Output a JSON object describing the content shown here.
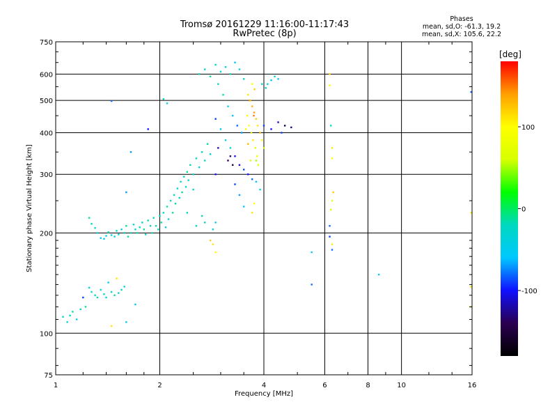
{
  "title": "Tromsø 20161229 11:16:00-11:17:43",
  "subtitle": "RwPretec (8p)",
  "info": {
    "heading": "Phases",
    "line1": "mean, sd,O: -61.3, 19.2",
    "line2": "mean, sd,X: 105.6, 22.2"
  },
  "colorbar": {
    "label": "[deg]",
    "range": [
      -180,
      180
    ],
    "ticks": [
      100,
      0,
      -100
    ],
    "colormap": [
      "#000000",
      "#2a0050",
      "#1010ff",
      "#00c8ff",
      "#00d8c0",
      "#00ff00",
      "#d8ff00",
      "#ffff00",
      "#ffa000",
      "#ff0000"
    ]
  },
  "chart_data": {
    "type": "scatter",
    "title": "Tromsø 20161229 11:16:00-11:17:43",
    "subtitle": "RwPretec (8p)",
    "xlabel": "Frequency [MHz]",
    "ylabel": "Stationary phase Virtual Height [km]",
    "xscale": "log",
    "yscale": "log",
    "xlim": [
      1,
      16
    ],
    "ylim": [
      75,
      750
    ],
    "xticks": [
      1,
      2,
      4,
      6,
      8,
      10,
      16
    ],
    "yticks": [
      75,
      100,
      200,
      300,
      400,
      500,
      600,
      750
    ],
    "grid": true,
    "color_variable": "phase [deg]",
    "series": [
      {
        "points": [
          [
            1.05,
            112,
            -20
          ],
          [
            1.08,
            108,
            -30
          ],
          [
            1.1,
            113,
            -25
          ],
          [
            1.12,
            116,
            -15
          ],
          [
            1.15,
            110,
            -35
          ],
          [
            1.18,
            118,
            -20
          ],
          [
            1.22,
            120,
            -10
          ],
          [
            1.25,
            137,
            -40
          ],
          [
            1.27,
            133,
            -30
          ],
          [
            1.3,
            130,
            -20
          ],
          [
            1.32,
            128,
            -15
          ],
          [
            1.35,
            135,
            -25
          ],
          [
            1.38,
            131,
            -20
          ],
          [
            1.4,
            128,
            -35
          ],
          [
            1.42,
            142,
            -60
          ],
          [
            1.45,
            133,
            -20
          ],
          [
            1.48,
            130,
            -15
          ],
          [
            1.5,
            146,
            110
          ],
          [
            1.52,
            132,
            -25
          ],
          [
            1.55,
            135,
            -20
          ],
          [
            1.58,
            138,
            -30
          ],
          [
            1.2,
            128,
            -90
          ],
          [
            1.45,
            105,
            110
          ],
          [
            1.6,
            108,
            -60
          ],
          [
            1.7,
            122,
            -50
          ],
          [
            1.25,
            222,
            -10
          ],
          [
            1.27,
            213,
            -20
          ],
          [
            1.3,
            207,
            -30
          ],
          [
            1.32,
            200,
            -40
          ],
          [
            1.35,
            193,
            -60
          ],
          [
            1.38,
            192,
            -50
          ],
          [
            1.4,
            196,
            -30
          ],
          [
            1.42,
            201,
            -20
          ],
          [
            1.45,
            197,
            -40
          ],
          [
            1.48,
            195,
            -30
          ],
          [
            1.5,
            203,
            -20
          ],
          [
            1.52,
            198,
            -25
          ],
          [
            1.55,
            205,
            -30
          ],
          [
            1.58,
            200,
            -20
          ],
          [
            1.6,
            210,
            -10
          ],
          [
            1.62,
            195,
            -15
          ],
          [
            1.65,
            200,
            -20
          ],
          [
            1.68,
            212,
            -30
          ],
          [
            1.7,
            205,
            -25
          ],
          [
            1.72,
            200,
            -15
          ],
          [
            1.75,
            208,
            -20
          ],
          [
            1.78,
            215,
            -30
          ],
          [
            1.8,
            205,
            -10
          ],
          [
            1.82,
            198,
            -20
          ],
          [
            1.85,
            218,
            -15
          ],
          [
            1.88,
            210,
            -25
          ],
          [
            1.9,
            200,
            -20
          ],
          [
            1.92,
            222,
            -30
          ],
          [
            1.95,
            210,
            -15
          ],
          [
            1.98,
            205,
            -20
          ],
          [
            2.0,
            225,
            -25
          ],
          [
            2.02,
            215,
            -10
          ],
          [
            2.05,
            230,
            -20
          ],
          [
            2.08,
            208,
            -30
          ],
          [
            2.1,
            240,
            -15
          ],
          [
            2.12,
            220,
            -25
          ],
          [
            2.15,
            250,
            -20
          ],
          [
            2.18,
            230,
            -10
          ],
          [
            2.2,
            260,
            -20
          ],
          [
            2.22,
            245,
            -15
          ],
          [
            2.25,
            272,
            -25
          ],
          [
            2.28,
            255,
            -20
          ],
          [
            2.3,
            285,
            -30
          ],
          [
            2.32,
            265,
            -15
          ],
          [
            2.35,
            295,
            -20
          ],
          [
            2.38,
            275,
            -25
          ],
          [
            2.4,
            305,
            -10
          ],
          [
            2.42,
            288,
            -20
          ],
          [
            2.45,
            320,
            -15
          ],
          [
            2.5,
            300,
            -25
          ],
          [
            2.55,
            335,
            -20
          ],
          [
            2.6,
            315,
            -30
          ],
          [
            2.65,
            350,
            -15
          ],
          [
            2.7,
            330,
            -20
          ],
          [
            2.75,
            370,
            -10
          ],
          [
            2.8,
            345,
            -25
          ],
          [
            1.6,
            265,
            -70
          ],
          [
            1.45,
            498,
            -80
          ],
          [
            1.65,
            350,
            -70
          ],
          [
            1.85,
            410,
            -100
          ],
          [
            2.05,
            505,
            -20
          ],
          [
            2.1,
            490,
            -30
          ],
          [
            2.5,
            270,
            -30
          ],
          [
            2.4,
            230,
            -20
          ],
          [
            2.7,
            215,
            -25
          ],
          [
            2.55,
            210,
            -20
          ],
          [
            2.65,
            225,
            -15
          ],
          [
            2.6,
            600,
            -20
          ],
          [
            2.7,
            620,
            -30
          ],
          [
            2.8,
            590,
            -10
          ],
          [
            2.9,
            640,
            -20
          ],
          [
            3.0,
            610,
            -40
          ],
          [
            3.1,
            630,
            -30
          ],
          [
            3.2,
            600,
            -20
          ],
          [
            3.3,
            650,
            -60
          ],
          [
            3.4,
            620,
            -40
          ],
          [
            3.5,
            580,
            -20
          ],
          [
            2.95,
            560,
            -30
          ],
          [
            3.05,
            520,
            -20
          ],
          [
            3.15,
            480,
            -40
          ],
          [
            3.25,
            450,
            -60
          ],
          [
            3.35,
            420,
            -80
          ],
          [
            3.45,
            400,
            -70
          ],
          [
            2.9,
            440,
            -90
          ],
          [
            3.0,
            410,
            -60
          ],
          [
            3.1,
            380,
            -40
          ],
          [
            3.2,
            360,
            -30
          ],
          [
            3.3,
            340,
            -100
          ],
          [
            3.4,
            320,
            -110
          ],
          [
            3.5,
            310,
            -90
          ],
          [
            3.6,
            300,
            -100
          ],
          [
            3.7,
            290,
            -80
          ],
          [
            3.8,
            285,
            -60
          ],
          [
            3.9,
            270,
            -40
          ],
          [
            3.15,
            330,
            -140
          ],
          [
            3.2,
            340,
            -130
          ],
          [
            3.25,
            320,
            -150
          ],
          [
            2.95,
            360,
            -120
          ],
          [
            2.9,
            300,
            -100
          ],
          [
            3.3,
            280,
            -90
          ],
          [
            3.4,
            260,
            -70
          ],
          [
            3.5,
            240,
            -60
          ],
          [
            2.85,
            205,
            -30
          ],
          [
            2.9,
            215,
            -40
          ],
          [
            3.6,
            520,
            110
          ],
          [
            3.65,
            500,
            90
          ],
          [
            3.7,
            480,
            130
          ],
          [
            3.75,
            460,
            140
          ],
          [
            3.8,
            440,
            120
          ],
          [
            3.62,
            420,
            100
          ],
          [
            3.68,
            400,
            80
          ],
          [
            3.72,
            380,
            110
          ],
          [
            3.78,
            360,
            70
          ],
          [
            3.82,
            340,
            90
          ],
          [
            3.66,
            330,
            60
          ],
          [
            3.74,
            450,
            150
          ],
          [
            3.7,
            560,
            100
          ],
          [
            3.76,
            540,
            120
          ],
          [
            3.84,
            420,
            110
          ],
          [
            3.9,
            400,
            130
          ],
          [
            3.95,
            380,
            90
          ],
          [
            4.0,
            360,
            60
          ],
          [
            3.6,
            370,
            130
          ],
          [
            3.55,
            410,
            100
          ],
          [
            3.58,
            450,
            90
          ],
          [
            3.64,
            500,
            140
          ],
          [
            3.8,
            330,
            50
          ],
          [
            3.85,
            320,
            70
          ],
          [
            3.7,
            230,
            110
          ],
          [
            3.75,
            245,
            100
          ],
          [
            2.85,
            185,
            110
          ],
          [
            2.8,
            190,
            120
          ],
          [
            2.9,
            175,
            100
          ],
          [
            4.1,
            560,
            -40
          ],
          [
            4.2,
            575,
            -60
          ],
          [
            4.3,
            590,
            -30
          ],
          [
            4.4,
            580,
            -50
          ],
          [
            4.0,
            420,
            -90
          ],
          [
            4.2,
            410,
            -100
          ],
          [
            4.4,
            430,
            -110
          ],
          [
            4.6,
            420,
            -150
          ],
          [
            4.8,
            415,
            -130
          ],
          [
            4.5,
            400,
            -90
          ],
          [
            3.95,
            560,
            -30
          ],
          [
            4.05,
            545,
            -20
          ],
          [
            5.5,
            175,
            -60
          ],
          [
            5.5,
            140,
            -80
          ],
          [
            6.2,
            600,
            120
          ],
          [
            6.2,
            555,
            100
          ],
          [
            6.25,
            420,
            -20
          ],
          [
            6.3,
            360,
            110
          ],
          [
            6.3,
            335,
            100
          ],
          [
            6.35,
            265,
            120
          ],
          [
            6.3,
            250,
            70
          ],
          [
            6.25,
            235,
            60
          ],
          [
            6.2,
            210,
            -80
          ],
          [
            6.2,
            195,
            -90
          ],
          [
            6.3,
            185,
            110
          ],
          [
            6.3,
            178,
            -80
          ],
          [
            8.6,
            150,
            -60
          ],
          [
            15.9,
            530,
            -80
          ],
          [
            15.9,
            230,
            110
          ],
          [
            15.9,
            138,
            110
          ],
          [
            15.9,
            120,
            110
          ]
        ]
      }
    ]
  }
}
